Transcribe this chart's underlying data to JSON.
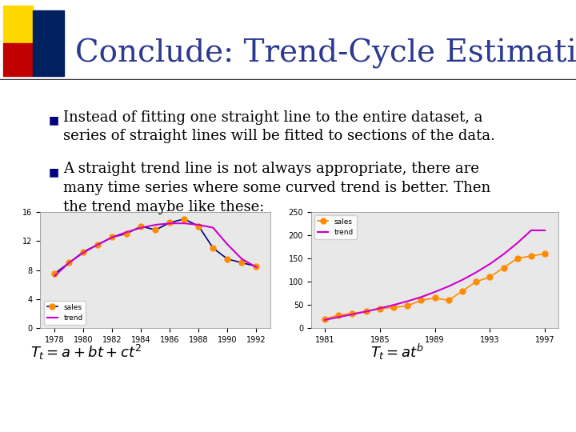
{
  "title": "Conclude: Trend-Cycle Estimation",
  "title_color": "#2B3990",
  "title_fontsize": 28,
  "background_color": "#FFFFFF",
  "bullet1": "Instead of fitting one straight line to the entire dataset, a\nseries of straight lines will be fitted to sections of the data.",
  "bullet2": "A straight trend line is not always appropriate, there are\nmany time series where some curved trend is better. Then\nthe trend maybe like these:",
  "bullet_fontsize": 13,
  "bullet_color": "#000000",
  "accent_colors": [
    "#FFD700",
    "#C00000",
    "#002060"
  ],
  "chart1": {
    "years": [
      1978,
      1979,
      1980,
      1981,
      1982,
      1983,
      1984,
      1985,
      1986,
      1987,
      1988,
      1989,
      1990,
      1991,
      1992
    ],
    "sales": [
      7.5,
      9.0,
      10.5,
      11.5,
      12.5,
      13.0,
      14.0,
      13.5,
      14.5,
      15.0,
      14.0,
      11.0,
      9.5,
      9.0,
      8.5
    ],
    "trend": [
      7.2,
      9.0,
      10.4,
      11.5,
      12.5,
      13.2,
      13.8,
      14.2,
      14.4,
      14.4,
      14.2,
      13.8,
      11.5,
      9.5,
      8.4
    ],
    "ylim": [
      0,
      16
    ],
    "yticks": [
      0,
      4,
      8,
      12,
      16
    ],
    "xlim": [
      1977,
      1993
    ],
    "xticks": [
      1978,
      1980,
      1982,
      1984,
      1986,
      1988,
      1990,
      1992
    ],
    "sales_color": "#FF8C00",
    "sales_line_color": "#000080",
    "trend_color": "#CC00CC",
    "formula": "$T_t = a + bt + ct^2$"
  },
  "chart2": {
    "years": [
      1981,
      1982,
      1983,
      1984,
      1985,
      1986,
      1987,
      1988,
      1989,
      1990,
      1991,
      1992,
      1993,
      1994,
      1995,
      1996,
      1997
    ],
    "sales": [
      20,
      28,
      32,
      36,
      42,
      45,
      48,
      60,
      65,
      60,
      80,
      100,
      110,
      130,
      150,
      155,
      160
    ],
    "trend": [
      18,
      24,
      30,
      36,
      43,
      50,
      58,
      67,
      78,
      90,
      104,
      120,
      138,
      159,
      183,
      210,
      210
    ],
    "ylim": [
      0,
      250
    ],
    "yticks": [
      0,
      50,
      100,
      150,
      200,
      250
    ],
    "xlim": [
      1980,
      1998
    ],
    "xticks": [
      1981,
      1985,
      1989,
      1993,
      1997
    ],
    "sales_color": "#FF8C00",
    "trend_color": "#CC00CC",
    "formula": "$T_t = at^b$"
  }
}
